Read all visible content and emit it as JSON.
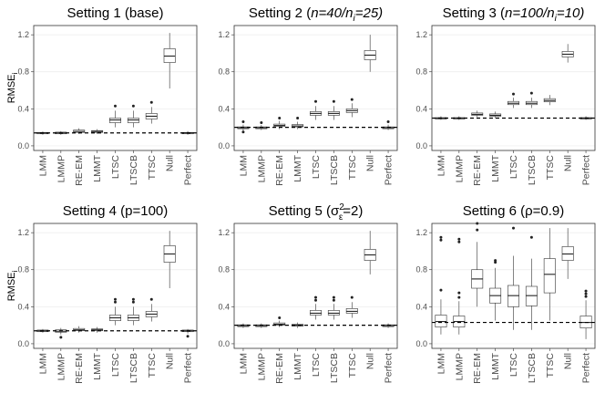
{
  "chart_data": {
    "type": "box",
    "ylim": [
      -0.05,
      1.3
    ],
    "yticks": [
      0.0,
      0.4,
      0.8,
      1.2
    ],
    "ytick_labels": [
      "0.0",
      "0.4",
      "0.8",
      "1.2"
    ],
    "categories": [
      "LMM",
      "LMMP",
      "RE-EM",
      "LMMT",
      "LTSC",
      "LTSCB",
      "TTSC",
      "Null",
      "Perfect"
    ],
    "ylabel": "RMSE",
    "ylabel_sub": "i",
    "panels": [
      {
        "title": "Setting 1 (base)",
        "reference_line": 0.14,
        "boxes": [
          {
            "min": 0.12,
            "q1": 0.13,
            "median": 0.14,
            "q3": 0.145,
            "max": 0.155,
            "outliers": []
          },
          {
            "min": 0.12,
            "q1": 0.13,
            "median": 0.14,
            "q3": 0.148,
            "max": 0.16,
            "outliers": []
          },
          {
            "min": 0.13,
            "q1": 0.145,
            "median": 0.155,
            "q3": 0.17,
            "max": 0.19,
            "outliers": []
          },
          {
            "min": 0.13,
            "q1": 0.145,
            "median": 0.155,
            "q3": 0.165,
            "max": 0.18,
            "outliers": []
          },
          {
            "min": 0.2,
            "q1": 0.25,
            "median": 0.28,
            "q3": 0.3,
            "max": 0.38,
            "outliers": [
              0.43
            ]
          },
          {
            "min": 0.2,
            "q1": 0.25,
            "median": 0.28,
            "q3": 0.3,
            "max": 0.38,
            "outliers": [
              0.43
            ]
          },
          {
            "min": 0.24,
            "q1": 0.29,
            "median": 0.32,
            "q3": 0.35,
            "max": 0.42,
            "outliers": [
              0.47
            ]
          },
          {
            "min": 0.62,
            "q1": 0.9,
            "median": 0.97,
            "q3": 1.05,
            "max": 1.22,
            "outliers": []
          },
          {
            "min": 0.12,
            "q1": 0.13,
            "median": 0.14,
            "q3": 0.145,
            "max": 0.16,
            "outliers": []
          }
        ]
      },
      {
        "title": "Setting 2 (n=40/n",
        "title_sub": "i",
        "title_tail": "=25)",
        "reference_line": 0.2,
        "boxes": [
          {
            "min": 0.16,
            "q1": 0.185,
            "median": 0.195,
            "q3": 0.205,
            "max": 0.23,
            "outliers": [
              0.15,
              0.26
            ]
          },
          {
            "min": 0.17,
            "q1": 0.185,
            "median": 0.195,
            "q3": 0.205,
            "max": 0.225,
            "outliers": [
              0.25
            ]
          },
          {
            "min": 0.18,
            "q1": 0.21,
            "median": 0.22,
            "q3": 0.235,
            "max": 0.27,
            "outliers": [
              0.3
            ]
          },
          {
            "min": 0.18,
            "q1": 0.205,
            "median": 0.215,
            "q3": 0.23,
            "max": 0.26,
            "outliers": [
              0.3
            ]
          },
          {
            "min": 0.28,
            "q1": 0.33,
            "median": 0.35,
            "q3": 0.37,
            "max": 0.43,
            "outliers": [
              0.48
            ]
          },
          {
            "min": 0.28,
            "q1": 0.33,
            "median": 0.35,
            "q3": 0.37,
            "max": 0.43,
            "outliers": [
              0.48
            ]
          },
          {
            "min": 0.31,
            "q1": 0.36,
            "median": 0.38,
            "q3": 0.4,
            "max": 0.46,
            "outliers": [
              0.5
            ]
          },
          {
            "min": 0.8,
            "q1": 0.93,
            "median": 0.98,
            "q3": 1.03,
            "max": 1.2,
            "outliers": []
          },
          {
            "min": 0.17,
            "q1": 0.185,
            "median": 0.195,
            "q3": 0.205,
            "max": 0.23,
            "outliers": [
              0.26
            ]
          }
        ]
      },
      {
        "title": "Setting 3 (n=100/n",
        "title_sub": "i",
        "title_tail": "=10)",
        "reference_line": 0.3,
        "boxes": [
          {
            "min": 0.28,
            "q1": 0.29,
            "median": 0.298,
            "q3": 0.305,
            "max": 0.32,
            "outliers": []
          },
          {
            "min": 0.28,
            "q1": 0.29,
            "median": 0.298,
            "q3": 0.305,
            "max": 0.32,
            "outliers": []
          },
          {
            "min": 0.31,
            "q1": 0.33,
            "median": 0.34,
            "q3": 0.355,
            "max": 0.38,
            "outliers": []
          },
          {
            "min": 0.3,
            "q1": 0.32,
            "median": 0.33,
            "q3": 0.345,
            "max": 0.37,
            "outliers": []
          },
          {
            "min": 0.41,
            "q1": 0.445,
            "median": 0.46,
            "q3": 0.48,
            "max": 0.52,
            "outliers": [
              0.56
            ]
          },
          {
            "min": 0.41,
            "q1": 0.445,
            "median": 0.46,
            "q3": 0.48,
            "max": 0.52,
            "outliers": [
              0.57
            ]
          },
          {
            "min": 0.44,
            "q1": 0.475,
            "median": 0.49,
            "q3": 0.51,
            "max": 0.55,
            "outliers": []
          },
          {
            "min": 0.9,
            "q1": 0.96,
            "median": 0.99,
            "q3": 1.02,
            "max": 1.1,
            "outliers": []
          },
          {
            "min": 0.28,
            "q1": 0.29,
            "median": 0.298,
            "q3": 0.305,
            "max": 0.32,
            "outliers": []
          }
        ]
      },
      {
        "title": "Setting 4 (p=100)",
        "reference_line": 0.14,
        "boxes": [
          {
            "min": 0.12,
            "q1": 0.13,
            "median": 0.14,
            "q3": 0.148,
            "max": 0.16,
            "outliers": []
          },
          {
            "min": 0.1,
            "q1": 0.125,
            "median": 0.135,
            "q3": 0.15,
            "max": 0.17,
            "outliers": [
              0.07
            ]
          },
          {
            "min": 0.12,
            "q1": 0.14,
            "median": 0.15,
            "q3": 0.165,
            "max": 0.19,
            "outliers": []
          },
          {
            "min": 0.12,
            "q1": 0.14,
            "median": 0.15,
            "q3": 0.16,
            "max": 0.18,
            "outliers": []
          },
          {
            "min": 0.2,
            "q1": 0.25,
            "median": 0.28,
            "q3": 0.31,
            "max": 0.4,
            "outliers": [
              0.45,
              0.48
            ]
          },
          {
            "min": 0.2,
            "q1": 0.25,
            "median": 0.28,
            "q3": 0.31,
            "max": 0.4,
            "outliers": [
              0.45,
              0.48
            ]
          },
          {
            "min": 0.24,
            "q1": 0.29,
            "median": 0.32,
            "q3": 0.35,
            "max": 0.43,
            "outliers": [
              0.48
            ]
          },
          {
            "min": 0.6,
            "q1": 0.88,
            "median": 0.97,
            "q3": 1.06,
            "max": 1.22,
            "outliers": []
          },
          {
            "min": 0.11,
            "q1": 0.13,
            "median": 0.14,
            "q3": 0.148,
            "max": 0.16,
            "outliers": [
              0.08
            ]
          }
        ]
      },
      {
        "title": "Setting 5 (σ",
        "title_sup": "2",
        "title_sub": "ε",
        "title_tail": "=2)",
        "reference_line": 0.2,
        "boxes": [
          {
            "min": 0.17,
            "q1": 0.185,
            "median": 0.195,
            "q3": 0.205,
            "max": 0.22,
            "outliers": []
          },
          {
            "min": 0.17,
            "q1": 0.185,
            "median": 0.195,
            "q3": 0.205,
            "max": 0.22,
            "outliers": []
          },
          {
            "min": 0.18,
            "q1": 0.2,
            "median": 0.21,
            "q3": 0.225,
            "max": 0.25,
            "outliers": [
              0.28
            ]
          },
          {
            "min": 0.17,
            "q1": 0.19,
            "median": 0.2,
            "q3": 0.21,
            "max": 0.23,
            "outliers": []
          },
          {
            "min": 0.26,
            "q1": 0.31,
            "median": 0.33,
            "q3": 0.36,
            "max": 0.43,
            "outliers": [
              0.47,
              0.5
            ]
          },
          {
            "min": 0.26,
            "q1": 0.31,
            "median": 0.33,
            "q3": 0.36,
            "max": 0.43,
            "outliers": [
              0.47,
              0.5
            ]
          },
          {
            "min": 0.28,
            "q1": 0.33,
            "median": 0.35,
            "q3": 0.38,
            "max": 0.45,
            "outliers": [
              0.5
            ]
          },
          {
            "min": 0.75,
            "q1": 0.9,
            "median": 0.96,
            "q3": 1.02,
            "max": 1.22,
            "outliers": []
          },
          {
            "min": 0.17,
            "q1": 0.185,
            "median": 0.195,
            "q3": 0.205,
            "max": 0.22,
            "outliers": []
          }
        ]
      },
      {
        "title": "Setting 6 (ρ=0.9)",
        "reference_line": 0.23,
        "boxes": [
          {
            "min": 0.1,
            "q1": 0.18,
            "median": 0.24,
            "q3": 0.31,
            "max": 0.48,
            "outliers": [
              0.58,
              1.12,
              1.15
            ]
          },
          {
            "min": 0.1,
            "q1": 0.18,
            "median": 0.24,
            "q3": 0.3,
            "max": 0.46,
            "outliers": [
              0.5,
              0.55,
              1.1,
              1.13
            ]
          },
          {
            "min": 0.4,
            "q1": 0.6,
            "median": 0.7,
            "q3": 0.8,
            "max": 1.1,
            "outliers": [
              1.23,
              1.3
            ]
          },
          {
            "min": 0.25,
            "q1": 0.44,
            "median": 0.52,
            "q3": 0.6,
            "max": 0.82,
            "outliers": [
              0.88,
              0.9
            ]
          },
          {
            "min": 0.15,
            "q1": 0.4,
            "median": 0.52,
            "q3": 0.63,
            "max": 0.95,
            "outliers": [
              1.25
            ]
          },
          {
            "min": 0.15,
            "q1": 0.41,
            "median": 0.52,
            "q3": 0.62,
            "max": 0.92,
            "outliers": [
              1.15
            ]
          },
          {
            "min": 0.25,
            "q1": 0.55,
            "median": 0.75,
            "q3": 0.92,
            "max": 1.25,
            "outliers": []
          },
          {
            "min": 0.7,
            "q1": 0.9,
            "median": 0.97,
            "q3": 1.05,
            "max": 1.25,
            "outliers": []
          },
          {
            "min": 0.05,
            "q1": 0.17,
            "median": 0.23,
            "q3": 0.3,
            "max": 0.47,
            "outliers": [
              0.51,
              0.54,
              0.57
            ]
          }
        ]
      }
    ]
  }
}
